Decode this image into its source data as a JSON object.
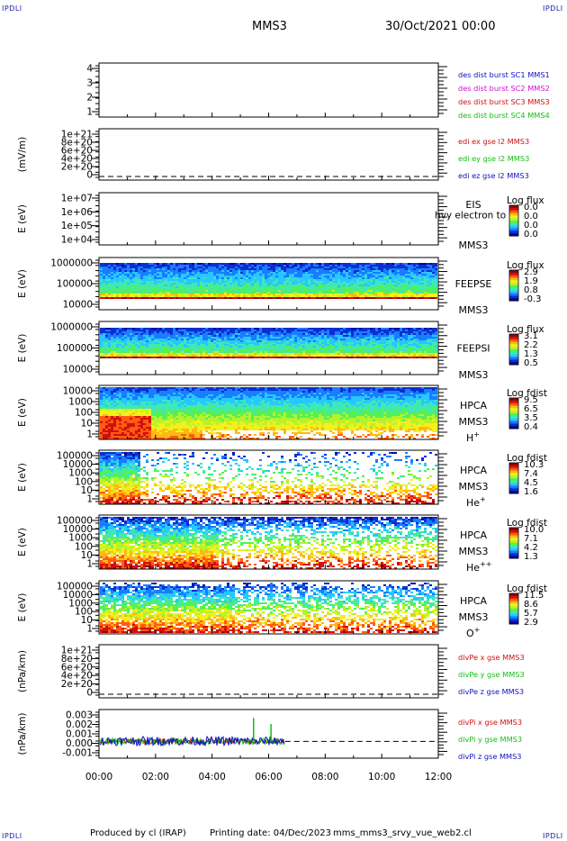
{
  "header": {
    "corner_tl": "IPDLI",
    "corner_tr": "IPDLI",
    "corner_bl": "IPDLI",
    "corner_br": "IPDLI",
    "mission": "MMS3",
    "datetime": "30/Oct/2021 00:00"
  },
  "footer": {
    "produced": "Produced by cl (IRAP)",
    "printing": "Printing date: 04/Dec/2023",
    "script": "mms_mms3_srvy_vue_web2.cl"
  },
  "colors": {
    "spectrogram": [
      "#08089a",
      "#0a2fd0",
      "#1a7cff",
      "#27c7ff",
      "#3ee8b8",
      "#54f05a",
      "#b8f22a",
      "#f4f01c",
      "#ffb814",
      "#ff5a10",
      "#d01010",
      "#8a0808"
    ]
  },
  "chart_data": [
    {
      "type": "line",
      "panel": "des-dist-burst",
      "ylabel": "",
      "yticks": [
        "4",
        "3",
        "2",
        "1"
      ],
      "ylim": [
        0.6,
        4.4
      ],
      "series": [
        {
          "name": "des dist burst SC1 MMS1",
          "color": "#1010c0",
          "values": []
        },
        {
          "name": "des dist burst SC2 MMS2",
          "color": "#d010d0",
          "values": []
        },
        {
          "name": "des dist burst SC3 MMS3",
          "color": "#d01010",
          "values": []
        },
        {
          "name": "des dist burst SC4 MMS4",
          "color": "#10c010",
          "values": []
        }
      ]
    },
    {
      "type": "line",
      "panel": "edi-e",
      "ylabel": "(mV/m)",
      "yticks": [
        "1e+21",
        "8e+20",
        "6e+20",
        "4e+20",
        "2e+20",
        "0"
      ],
      "ylim": [
        -1e+20,
        1.05e+21
      ],
      "zero_line": true,
      "series": [
        {
          "name": "edi ex gse l2 MMS3",
          "color": "#d01010",
          "values": []
        },
        {
          "name": "edi ey gse l2 MMS3",
          "color": "#10c010",
          "values": []
        },
        {
          "name": "edi ez gse l2 MMS3",
          "color": "#1010c0",
          "values": []
        }
      ]
    },
    {
      "type": "heatmap",
      "panel": "eis",
      "ylabel": "E (eV)",
      "yticks": [
        "1e+07",
        "1e+06",
        "1e+05",
        "1e+04"
      ],
      "log_y": true,
      "ylim": [
        10000,
        10000000
      ],
      "instrument": "EIS",
      "subtitle": "hvy electron to",
      "mission": "MMS3",
      "colorbar": {
        "label": "Log flux",
        "ticks": [
          "0.0",
          "0.0",
          "0.0",
          "0.0"
        ]
      },
      "data_present": false
    },
    {
      "type": "heatmap",
      "panel": "feepse",
      "ylabel": "E (eV)",
      "yticks": [
        "1000000",
        "100000",
        "10000"
      ],
      "log_y": true,
      "ylim": [
        10000,
        1000000
      ],
      "instrument": "FEEPSE",
      "mission": "MMS3",
      "colorbar": {
        "label": "Log flux",
        "ticks": [
          "2.9",
          "1.9",
          "0.8",
          "-0.3"
        ]
      },
      "data_present": true
    },
    {
      "type": "heatmap",
      "panel": "feepsi",
      "ylabel": "E (eV)",
      "yticks": [
        "1000000",
        "100000",
        "10000"
      ],
      "log_y": true,
      "ylim": [
        10000,
        1000000
      ],
      "instrument": "FEEPSI",
      "mission": "MMS3",
      "colorbar": {
        "label": "Log flux",
        "ticks": [
          "3.1",
          "2.2",
          "1.3",
          "0.5"
        ]
      },
      "data_present": true
    },
    {
      "type": "heatmap",
      "panel": "hpca-h",
      "ylabel": "E (eV)",
      "yticks": [
        "10000",
        "1000",
        "100",
        "10",
        "1"
      ],
      "log_y": true,
      "ylim": [
        1,
        30000
      ],
      "instrument": "HPCA",
      "mission": "MMS3",
      "species": "H",
      "charge": "+",
      "colorbar": {
        "label": "Log fdist",
        "ticks": [
          "9.5",
          "6.5",
          "3.5",
          "0.4"
        ]
      },
      "data_present": true
    },
    {
      "type": "heatmap",
      "panel": "hpca-he",
      "ylabel": "E (eV)",
      "yticks": [
        "100000",
        "10000",
        "1000",
        "100",
        "10",
        "1"
      ],
      "log_y": true,
      "ylim": [
        1,
        100000
      ],
      "instrument": "HPCA",
      "mission": "MMS3",
      "species": "He",
      "charge": "+",
      "colorbar": {
        "label": "Log fdist",
        "ticks": [
          "10.3",
          "7.4",
          "4.5",
          "1.6"
        ]
      },
      "data_present": true
    },
    {
      "type": "heatmap",
      "panel": "hpca-hepp",
      "ylabel": "E (eV)",
      "yticks": [
        "100000",
        "10000",
        "1000",
        "100",
        "10",
        "1"
      ],
      "log_y": true,
      "ylim": [
        1,
        100000
      ],
      "instrument": "HPCA",
      "mission": "MMS3",
      "species": "He",
      "charge": "++",
      "colorbar": {
        "label": "Log fdist",
        "ticks": [
          "10.0",
          "7.1",
          "4.2",
          "1.3"
        ]
      },
      "data_present": true
    },
    {
      "type": "heatmap",
      "panel": "hpca-o",
      "ylabel": "E (eV)",
      "yticks": [
        "100000",
        "10000",
        "1000",
        "100",
        "10",
        "1"
      ],
      "log_y": true,
      "ylim": [
        1,
        100000
      ],
      "instrument": "HPCA",
      "mission": "MMS3",
      "species": "O",
      "charge": "+",
      "colorbar": {
        "label": "Log fdist",
        "ticks": [
          "11.5",
          "8.6",
          "5.7",
          "2.9"
        ]
      },
      "data_present": true
    },
    {
      "type": "line",
      "panel": "divpe",
      "ylabel": "(nPa/km)",
      "yticks": [
        "1e+21",
        "8e+20",
        "6e+20",
        "4e+20",
        "2e+20",
        "0"
      ],
      "ylim": [
        -1e+20,
        1.05e+21
      ],
      "zero_line": true,
      "series": [
        {
          "name": "divPe x gse MMS3",
          "color": "#d01010",
          "values": []
        },
        {
          "name": "divPe y gse MMS3",
          "color": "#10c010",
          "values": []
        },
        {
          "name": "divPe z gse MMS3",
          "color": "#1010c0",
          "values": []
        }
      ]
    },
    {
      "type": "line",
      "panel": "divpi",
      "ylabel": "(nPa/km)",
      "yticks": [
        "0.003",
        "0.002",
        "0.001",
        "0.000",
        "-0.001"
      ],
      "ylim": [
        -0.0015,
        0.0035
      ],
      "zero_line": true,
      "data_end": "06:35",
      "spikes": [
        {
          "t": "05:28",
          "value": 0.0031
        },
        {
          "t": "06:05",
          "value": 0.0023
        }
      ],
      "series": [
        {
          "name": "divPi x gse MMS3",
          "color": "#d01010",
          "values": []
        },
        {
          "name": "divPi y gse MMS3",
          "color": "#10c010",
          "values": []
        },
        {
          "name": "divPi z gse MMS3",
          "color": "#1010c0",
          "values": []
        }
      ]
    }
  ],
  "xaxis": {
    "ticks": [
      "00:00",
      "02:00",
      "04:00",
      "06:00",
      "08:00",
      "10:00",
      "12:00"
    ]
  }
}
